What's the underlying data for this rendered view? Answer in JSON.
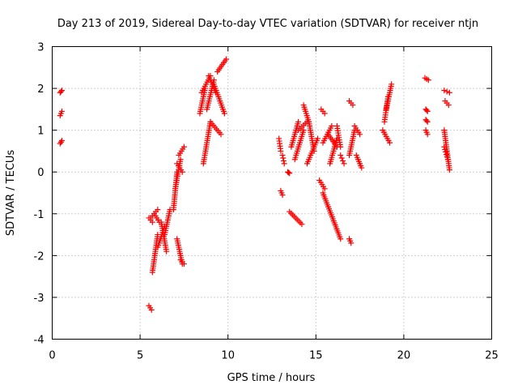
{
  "chart_data": {
    "type": "scatter",
    "title": "Day 213 of 2019, Sidereal Day-to-day VTEC variation (SDTVAR) for receiver ntjn",
    "xlabel": "GPS time / hours",
    "ylabel": "SDTVAR / TECUs",
    "xlim": [
      0,
      25
    ],
    "ylim": [
      -4,
      3
    ],
    "xticks": [
      "0",
      "5",
      "10",
      "15",
      "20",
      "25"
    ],
    "yticks": [
      "-4",
      "-3",
      "-2",
      "-1",
      "0",
      "1",
      "2",
      "3"
    ],
    "grid": true,
    "marker": "+",
    "color": "#ff0000",
    "tracks": [
      [
        0.45,
        1.9,
        0.55,
        1.95
      ],
      [
        0.45,
        1.35,
        0.55,
        1.45
      ],
      [
        0.45,
        0.68,
        0.55,
        0.75
      ],
      [
        5.5,
        -3.2,
        5.65,
        -3.3
      ],
      [
        5.5,
        -1.1,
        5.7,
        -1.2
      ],
      [
        5.6,
        -1.1,
        6.0,
        -0.9
      ],
      [
        5.7,
        -2.4,
        6.0,
        -1.5
      ],
      [
        5.8,
        -1.0,
        6.1,
        -1.2
      ],
      [
        6.0,
        -1.8,
        6.4,
        -1.3
      ],
      [
        6.2,
        -1.2,
        6.5,
        -1.9
      ],
      [
        6.4,
        -1.5,
        6.7,
        -0.9
      ],
      [
        6.9,
        -0.9,
        7.1,
        0.0
      ],
      [
        7.0,
        -0.4,
        7.3,
        0.3
      ],
      [
        7.1,
        0.2,
        7.4,
        0.0
      ],
      [
        7.2,
        0.4,
        7.5,
        0.6
      ],
      [
        7.1,
        -1.6,
        7.4,
        -2.2
      ],
      [
        7.3,
        -2.1,
        7.5,
        -2.2
      ],
      [
        8.4,
        1.4,
        8.7,
        2.0
      ],
      [
        8.6,
        0.2,
        9.0,
        1.2
      ],
      [
        8.5,
        1.9,
        9.0,
        2.3
      ],
      [
        8.8,
        1.5,
        9.2,
        2.2
      ],
      [
        8.9,
        2.3,
        9.3,
        1.9
      ],
      [
        9.0,
        1.2,
        9.6,
        0.9
      ],
      [
        9.2,
        2.1,
        9.8,
        1.4
      ],
      [
        9.4,
        2.4,
        9.9,
        2.7
      ],
      [
        12.9,
        0.8,
        13.0,
        0.5
      ],
      [
        13.0,
        -0.45,
        13.1,
        -0.55
      ],
      [
        13.1,
        0.4,
        13.2,
        0.2
      ],
      [
        13.4,
        0.0,
        13.5,
        -0.03
      ],
      [
        13.5,
        -0.95,
        14.2,
        -1.25
      ],
      [
        13.6,
        0.6,
        14.0,
        1.2
      ],
      [
        13.8,
        0.3,
        14.3,
        1.0
      ],
      [
        14.0,
        1.0,
        14.5,
        1.2
      ],
      [
        14.3,
        1.6,
        14.6,
        1.2
      ],
      [
        14.6,
        1.2,
        14.9,
        0.5
      ],
      [
        14.5,
        0.2,
        15.1,
        0.8
      ],
      [
        15.2,
        -0.2,
        15.5,
        -0.4
      ],
      [
        15.4,
        -0.5,
        16.4,
        -1.6
      ],
      [
        15.3,
        1.5,
        15.5,
        1.4
      ],
      [
        15.4,
        0.7,
        15.9,
        1.1
      ],
      [
        15.7,
        0.9,
        16.2,
        0.6
      ],
      [
        15.8,
        0.2,
        16.2,
        0.8
      ],
      [
        16.2,
        1.1,
        16.4,
        0.6
      ],
      [
        16.4,
        0.4,
        16.6,
        0.2
      ],
      [
        16.9,
        -1.6,
        17.0,
        -1.7
      ],
      [
        16.9,
        1.7,
        17.1,
        1.6
      ],
      [
        16.9,
        0.4,
        17.2,
        1.0
      ],
      [
        17.2,
        1.1,
        17.5,
        0.9
      ],
      [
        17.3,
        0.4,
        17.6,
        0.1
      ],
      [
        18.8,
        1.0,
        19.2,
        0.7
      ],
      [
        18.9,
        1.2,
        19.1,
        1.8
      ],
      [
        19.0,
        1.5,
        19.3,
        2.1
      ],
      [
        21.2,
        2.25,
        21.4,
        2.2
      ],
      [
        21.25,
        1.5,
        21.35,
        1.45
      ],
      [
        21.25,
        1.25,
        21.35,
        1.2
      ],
      [
        21.25,
        1.0,
        21.35,
        0.9
      ],
      [
        22.3,
        1.95,
        22.6,
        1.9
      ],
      [
        22.35,
        1.7,
        22.55,
        1.6
      ],
      [
        22.3,
        1.0,
        22.6,
        0.05
      ],
      [
        22.3,
        0.6,
        22.5,
        0.3
      ]
    ]
  }
}
